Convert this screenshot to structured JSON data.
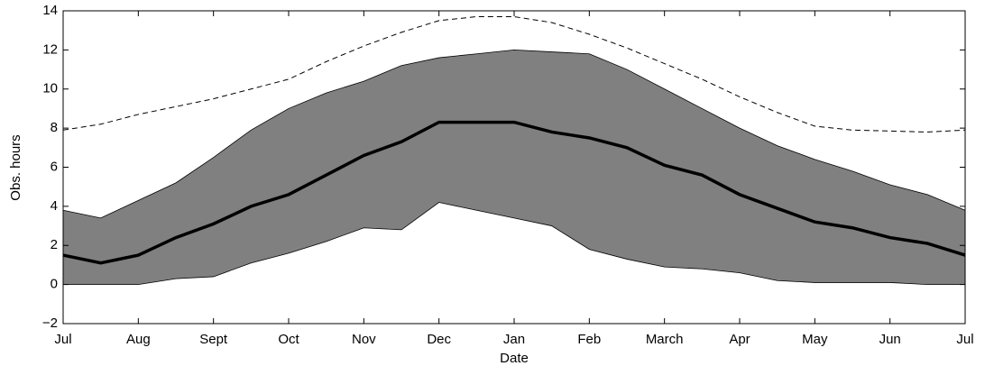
{
  "chart_data": {
    "type": "line",
    "xlabel": "Date",
    "ylabel": "Obs. hours",
    "categories": [
      "Jul",
      null,
      "Aug",
      null,
      "Sept",
      null,
      "Oct",
      null,
      "Nov",
      null,
      "Dec",
      null,
      "Jan",
      null,
      "Feb",
      null,
      "March",
      null,
      "Apr",
      null,
      "May",
      null,
      "Jun",
      null,
      "Jul"
    ],
    "band": {
      "color": "#808080",
      "upper": [
        3.8,
        3.4,
        4.3,
        5.2,
        6.5,
        7.9,
        9.0,
        9.8,
        10.4,
        11.2,
        11.6,
        11.8,
        12.0,
        11.9,
        11.8,
        11.0,
        10.0,
        9.0,
        8.0,
        7.1,
        6.4,
        5.8,
        5.1,
        4.6,
        3.8
      ],
      "lower": [
        0,
        0,
        0,
        0.3,
        0.4,
        1.1,
        1.6,
        2.2,
        2.9,
        2.8,
        4.2,
        3.8,
        3.4,
        3.0,
        1.8,
        1.3,
        0.9,
        0.8,
        0.6,
        0.2,
        0.1,
        0.1,
        0.1,
        0,
        0
      ]
    },
    "series": [
      {
        "color": "#000000",
        "linestyle": "solid",
        "values": [
          1.5,
          1.1,
          1.5,
          2.4,
          3.1,
          4.0,
          4.6,
          5.6,
          6.6,
          7.3,
          8.3,
          8.3,
          8.3,
          7.8,
          7.5,
          7.0,
          6.1,
          5.6,
          4.6,
          3.9,
          3.2,
          2.9,
          2.4,
          2.1,
          1.5
        ]
      },
      {
        "color": "#000000",
        "linestyle": "dashed",
        "values": [
          7.9,
          8.2,
          8.7,
          9.1,
          9.5,
          10.0,
          10.5,
          11.4,
          12.2,
          12.9,
          13.5,
          13.7,
          13.7,
          13.4,
          12.8,
          12.1,
          11.3,
          10.5,
          9.6,
          8.8,
          8.1,
          7.9,
          7.85,
          7.8,
          7.9
        ]
      }
    ],
    "ylim": [
      -2,
      14
    ],
    "yticks": [
      {
        "value": -2,
        "label": "−2"
      },
      0,
      2,
      4,
      6,
      8,
      10,
      12,
      14
    ],
    "grid": false
  }
}
